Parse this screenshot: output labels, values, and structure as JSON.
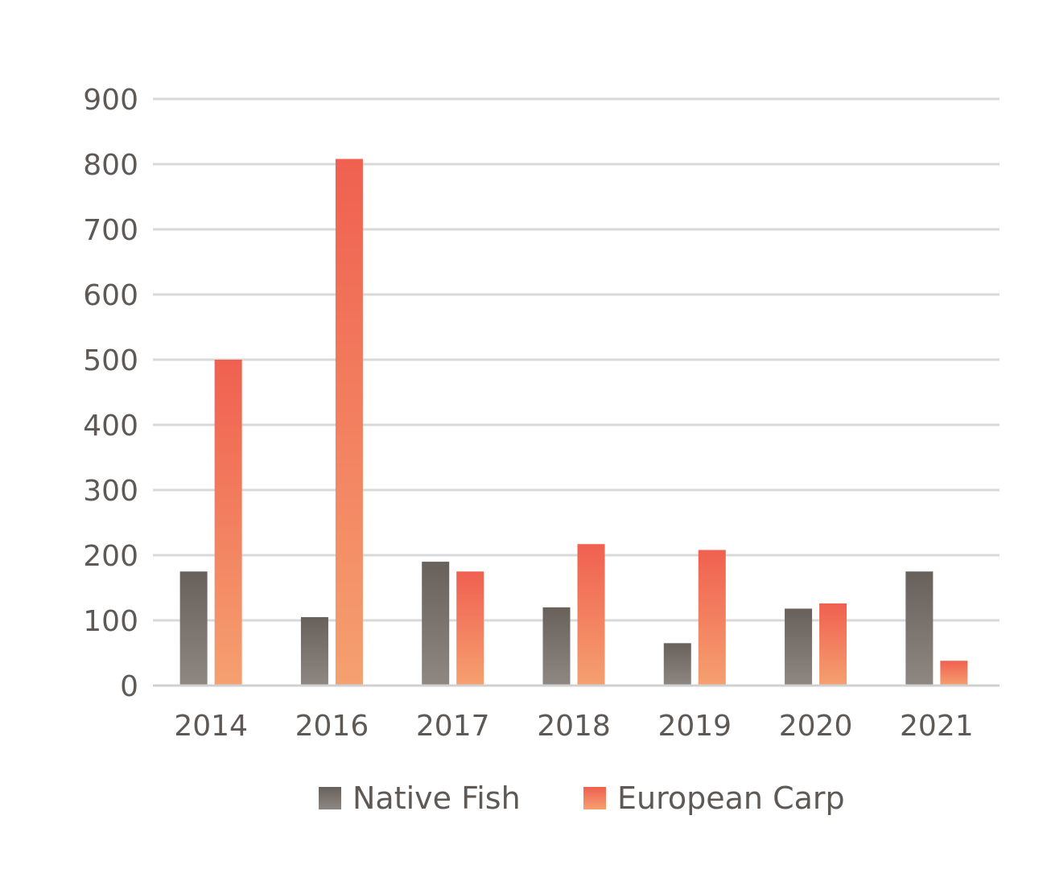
{
  "chart_data": {
    "type": "bar",
    "title": "",
    "xlabel": "",
    "ylabel": "",
    "ylim": [
      0,
      900
    ],
    "yticks": [
      0,
      100,
      200,
      300,
      400,
      500,
      600,
      700,
      800,
      900
    ],
    "grid": true,
    "legend_position": "bottom-center",
    "categories": [
      "2014",
      "2016",
      "2017",
      "2018",
      "2019",
      "2020",
      "2021"
    ],
    "series": [
      {
        "name": "Native Fish",
        "color_top": "#68605a",
        "color_bottom": "#8f8781",
        "values": [
          175,
          105,
          190,
          120,
          65,
          118,
          175
        ]
      },
      {
        "name": "European Carp",
        "color_top": "#f06050",
        "color_bottom": "#f5a070",
        "values": [
          500,
          808,
          175,
          217,
          208,
          126,
          38
        ]
      }
    ]
  }
}
